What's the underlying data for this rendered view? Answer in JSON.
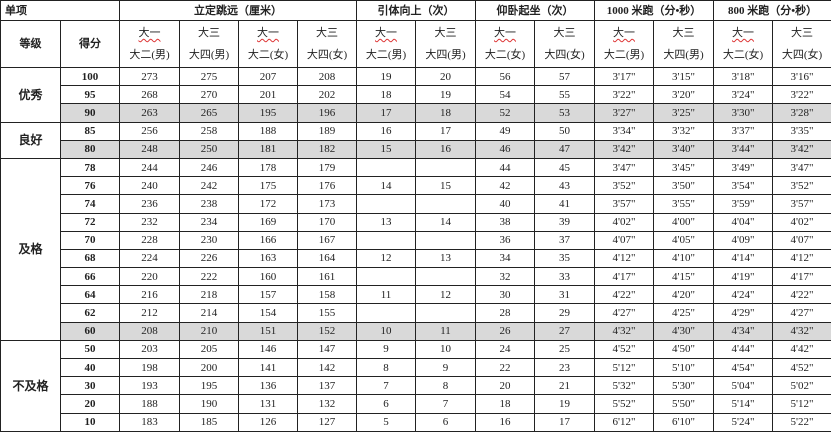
{
  "header": {
    "item_label": "单项",
    "grade_label": "等级",
    "score_label": "得分",
    "groups": [
      {
        "title": "立定跳远（厘米）",
        "span": 4
      },
      {
        "title": "引体向上（次）",
        "span": 2
      },
      {
        "title": "仰卧起坐（次）",
        "span": 2
      },
      {
        "title": "1000 米跑（分•秒）",
        "span": 2
      },
      {
        "title": "800 米跑（分•秒）",
        "span": 2
      }
    ],
    "subcols": [
      {
        "top": "大一",
        "bottom": "大二(男)"
      },
      {
        "top": "大三",
        "bottom": "大四(男)"
      },
      {
        "top": "大一",
        "bottom": "大二(女)"
      },
      {
        "top": "大三",
        "bottom": "大四(女)"
      },
      {
        "top": "大一",
        "bottom": "大二(男)"
      },
      {
        "top": "大三",
        "bottom": "大四(男)"
      },
      {
        "top": "大一",
        "bottom": "大二(女)"
      },
      {
        "top": "大三",
        "bottom": "大四(女)"
      },
      {
        "top": "大一",
        "bottom": "大二(男)"
      },
      {
        "top": "大三",
        "bottom": "大四(男)"
      },
      {
        "top": "大一",
        "bottom": "大二(女)"
      },
      {
        "top": "大三",
        "bottom": "大四(女)"
      }
    ]
  },
  "grades": [
    {
      "grade": "优秀",
      "rows": [
        {
          "score": "100",
          "shaded": false,
          "values": [
            "273",
            "275",
            "207",
            "208",
            "19",
            "20",
            "56",
            "57",
            "3'17\"",
            "3'15\"",
            "3'18\"",
            "3'16\""
          ]
        },
        {
          "score": "95",
          "shaded": false,
          "values": [
            "268",
            "270",
            "201",
            "202",
            "18",
            "19",
            "54",
            "55",
            "3'22\"",
            "3'20\"",
            "3'24\"",
            "3'22\""
          ]
        },
        {
          "score": "90",
          "shaded": true,
          "values": [
            "263",
            "265",
            "195",
            "196",
            "17",
            "18",
            "52",
            "53",
            "3'27\"",
            "3'25\"",
            "3'30\"",
            "3'28\""
          ]
        }
      ]
    },
    {
      "grade": "良好",
      "rows": [
        {
          "score": "85",
          "shaded": false,
          "values": [
            "256",
            "258",
            "188",
            "189",
            "16",
            "17",
            "49",
            "50",
            "3'34\"",
            "3'32\"",
            "3'37\"",
            "3'35\""
          ]
        },
        {
          "score": "80",
          "shaded": true,
          "values": [
            "248",
            "250",
            "181",
            "182",
            "15",
            "16",
            "46",
            "47",
            "3'42\"",
            "3'40\"",
            "3'44\"",
            "3'42\""
          ]
        }
      ]
    },
    {
      "grade": "及格",
      "rows": [
        {
          "score": "78",
          "shaded": false,
          "values": [
            "244",
            "246",
            "178",
            "179",
            "",
            "",
            "44",
            "45",
            "3'47\"",
            "3'45\"",
            "3'49\"",
            "3'47\""
          ]
        },
        {
          "score": "76",
          "shaded": false,
          "values": [
            "240",
            "242",
            "175",
            "176",
            "14",
            "15",
            "42",
            "43",
            "3'52\"",
            "3'50\"",
            "3'54\"",
            "3'52\""
          ]
        },
        {
          "score": "74",
          "shaded": false,
          "values": [
            "236",
            "238",
            "172",
            "173",
            "",
            "",
            "40",
            "41",
            "3'57\"",
            "3'55\"",
            "3'59\"",
            "3'57\""
          ]
        },
        {
          "score": "72",
          "shaded": false,
          "values": [
            "232",
            "234",
            "169",
            "170",
            "13",
            "14",
            "38",
            "39",
            "4'02\"",
            "4'00\"",
            "4'04\"",
            "4'02\""
          ]
        },
        {
          "score": "70",
          "shaded": false,
          "values": [
            "228",
            "230",
            "166",
            "167",
            "",
            "",
            "36",
            "37",
            "4'07\"",
            "4'05\"",
            "4'09\"",
            "4'07\""
          ]
        },
        {
          "score": "68",
          "shaded": false,
          "values": [
            "224",
            "226",
            "163",
            "164",
            "12",
            "13",
            "34",
            "35",
            "4'12\"",
            "4'10\"",
            "4'14\"",
            "4'12\""
          ]
        },
        {
          "score": "66",
          "shaded": false,
          "values": [
            "220",
            "222",
            "160",
            "161",
            "",
            "",
            "32",
            "33",
            "4'17\"",
            "4'15\"",
            "4'19\"",
            "4'17\""
          ]
        },
        {
          "score": "64",
          "shaded": false,
          "values": [
            "216",
            "218",
            "157",
            "158",
            "11",
            "12",
            "30",
            "31",
            "4'22\"",
            "4'20\"",
            "4'24\"",
            "4'22\""
          ]
        },
        {
          "score": "62",
          "shaded": false,
          "values": [
            "212",
            "214",
            "154",
            "155",
            "",
            "",
            "28",
            "29",
            "4'27\"",
            "4'25\"",
            "4'29\"",
            "4'27\""
          ]
        },
        {
          "score": "60",
          "shaded": true,
          "values": [
            "208",
            "210",
            "151",
            "152",
            "10",
            "11",
            "26",
            "27",
            "4'32\"",
            "4'30\"",
            "4'34\"",
            "4'32\""
          ]
        }
      ]
    },
    {
      "grade": "不及格",
      "rows": [
        {
          "score": "50",
          "shaded": false,
          "values": [
            "203",
            "205",
            "146",
            "147",
            "9",
            "10",
            "24",
            "25",
            "4'52\"",
            "4'50\"",
            "4'44\"",
            "4'42\""
          ]
        },
        {
          "score": "40",
          "shaded": false,
          "values": [
            "198",
            "200",
            "141",
            "142",
            "8",
            "9",
            "22",
            "23",
            "5'12\"",
            "5'10\"",
            "4'54\"",
            "4'52\""
          ]
        },
        {
          "score": "30",
          "shaded": false,
          "values": [
            "193",
            "195",
            "136",
            "137",
            "7",
            "8",
            "20",
            "21",
            "5'32\"",
            "5'30\"",
            "5'04\"",
            "5'02\""
          ]
        },
        {
          "score": "20",
          "shaded": false,
          "values": [
            "188",
            "190",
            "131",
            "132",
            "6",
            "7",
            "18",
            "19",
            "5'52\"",
            "5'50\"",
            "5'14\"",
            "5'12\""
          ]
        },
        {
          "score": "10",
          "shaded": false,
          "values": [
            "183",
            "185",
            "126",
            "127",
            "5",
            "6",
            "16",
            "17",
            "6'12\"",
            "6'10\"",
            "5'24\"",
            "5'22\""
          ]
        }
      ]
    }
  ],
  "colors": {
    "shade": "#d9d9d9",
    "border": "#222222",
    "spellcheck": "#dd3333"
  }
}
